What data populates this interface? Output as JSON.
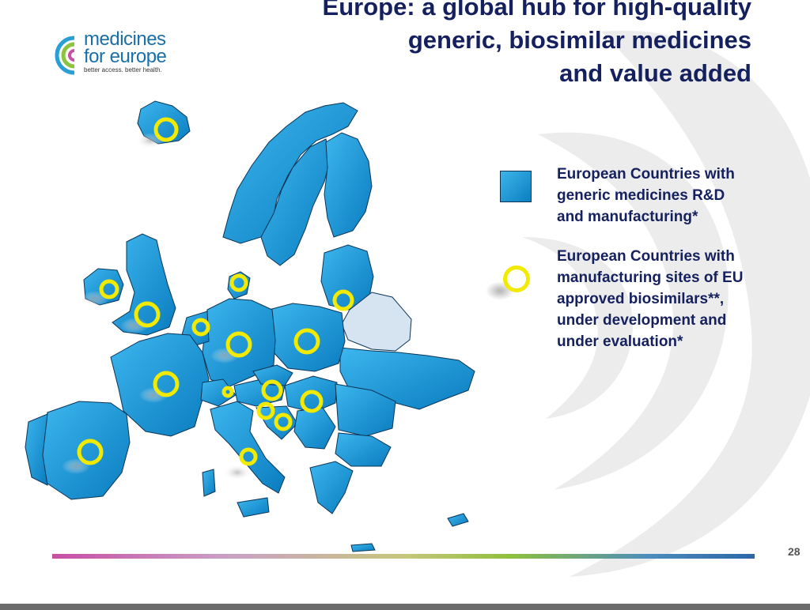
{
  "title": {
    "line1": "Europe: a global hub for high-quality",
    "line2": "generic, biosimilar medicines",
    "line3": "and value added"
  },
  "logo": {
    "line1": "medicines",
    "line2": "for europe",
    "tagline": "better access. better health."
  },
  "legend": {
    "box_label": "European Countries with generic medicines R&D and manufacturing*",
    "box_lines": [
      "European Countries with",
      "generic medicines R&D",
      "and manufacturing*"
    ],
    "ring_label": "European Countries with manufacturing sites of EU approved biosimilars**, under development and under evaluation*",
    "ring_lines": [
      "European Countries with",
      "manufacturing sites of EU",
      "approved biosimilars**,",
      "under development and",
      "under evaluation*"
    ]
  },
  "page_number": "28",
  "colors": {
    "title": "#15205e",
    "country_fill": "#1e9ad8",
    "non_member_fill": "#d6e3f1",
    "ring": "#f2ea00"
  },
  "icons": [
    "logo-c-icon",
    "biosimilar-ring-icon",
    "country-square-icon"
  ]
}
